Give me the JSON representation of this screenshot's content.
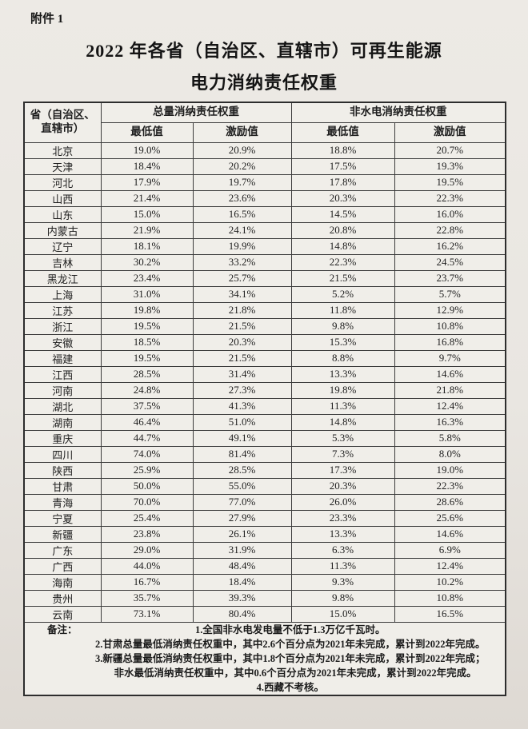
{
  "page": {
    "attachment_label": "附件 1",
    "title_line1": "2022 年各省（自治区、直辖市）可再生能源",
    "title_line2": "电力消纳责任权重"
  },
  "table": {
    "header": {
      "province": "省（自治区、直辖市）",
      "group_total": "总量消纳责任权重",
      "group_nonhydro": "非水电消纳责任权重",
      "min_label": "最低值",
      "incentive_label": "激励值"
    },
    "rows": [
      {
        "province": "北京",
        "total_min": "19.0%",
        "total_inc": "20.9%",
        "nonhydro_min": "18.8%",
        "nonhydro_inc": "20.7%"
      },
      {
        "province": "天津",
        "total_min": "18.4%",
        "total_inc": "20.2%",
        "nonhydro_min": "17.5%",
        "nonhydro_inc": "19.3%"
      },
      {
        "province": "河北",
        "total_min": "17.9%",
        "total_inc": "19.7%",
        "nonhydro_min": "17.8%",
        "nonhydro_inc": "19.5%"
      },
      {
        "province": "山西",
        "total_min": "21.4%",
        "total_inc": "23.6%",
        "nonhydro_min": "20.3%",
        "nonhydro_inc": "22.3%"
      },
      {
        "province": "山东",
        "total_min": "15.0%",
        "total_inc": "16.5%",
        "nonhydro_min": "14.5%",
        "nonhydro_inc": "16.0%"
      },
      {
        "province": "内蒙古",
        "total_min": "21.9%",
        "total_inc": "24.1%",
        "nonhydro_min": "20.8%",
        "nonhydro_inc": "22.8%"
      },
      {
        "province": "辽宁",
        "total_min": "18.1%",
        "total_inc": "19.9%",
        "nonhydro_min": "14.8%",
        "nonhydro_inc": "16.2%"
      },
      {
        "province": "吉林",
        "total_min": "30.2%",
        "total_inc": "33.2%",
        "nonhydro_min": "22.3%",
        "nonhydro_inc": "24.5%"
      },
      {
        "province": "黑龙江",
        "total_min": "23.4%",
        "total_inc": "25.7%",
        "nonhydro_min": "21.5%",
        "nonhydro_inc": "23.7%"
      },
      {
        "province": "上海",
        "total_min": "31.0%",
        "total_inc": "34.1%",
        "nonhydro_min": "5.2%",
        "nonhydro_inc": "5.7%"
      },
      {
        "province": "江苏",
        "total_min": "19.8%",
        "total_inc": "21.8%",
        "nonhydro_min": "11.8%",
        "nonhydro_inc": "12.9%"
      },
      {
        "province": "浙江",
        "total_min": "19.5%",
        "total_inc": "21.5%",
        "nonhydro_min": "9.8%",
        "nonhydro_inc": "10.8%"
      },
      {
        "province": "安徽",
        "total_min": "18.5%",
        "total_inc": "20.3%",
        "nonhydro_min": "15.3%",
        "nonhydro_inc": "16.8%"
      },
      {
        "province": "福建",
        "total_min": "19.5%",
        "total_inc": "21.5%",
        "nonhydro_min": "8.8%",
        "nonhydro_inc": "9.7%"
      },
      {
        "province": "江西",
        "total_min": "28.5%",
        "total_inc": "31.4%",
        "nonhydro_min": "13.3%",
        "nonhydro_inc": "14.6%"
      },
      {
        "province": "河南",
        "total_min": "24.8%",
        "total_inc": "27.3%",
        "nonhydro_min": "19.8%",
        "nonhydro_inc": "21.8%"
      },
      {
        "province": "湖北",
        "total_min": "37.5%",
        "total_inc": "41.3%",
        "nonhydro_min": "11.3%",
        "nonhydro_inc": "12.4%"
      },
      {
        "province": "湖南",
        "total_min": "46.4%",
        "total_inc": "51.0%",
        "nonhydro_min": "14.8%",
        "nonhydro_inc": "16.3%"
      },
      {
        "province": "重庆",
        "total_min": "44.7%",
        "total_inc": "49.1%",
        "nonhydro_min": "5.3%",
        "nonhydro_inc": "5.8%"
      },
      {
        "province": "四川",
        "total_min": "74.0%",
        "total_inc": "81.4%",
        "nonhydro_min": "7.3%",
        "nonhydro_inc": "8.0%"
      },
      {
        "province": "陕西",
        "total_min": "25.9%",
        "total_inc": "28.5%",
        "nonhydro_min": "17.3%",
        "nonhydro_inc": "19.0%"
      },
      {
        "province": "甘肃",
        "total_min": "50.0%",
        "total_inc": "55.0%",
        "nonhydro_min": "20.3%",
        "nonhydro_inc": "22.3%"
      },
      {
        "province": "青海",
        "total_min": "70.0%",
        "total_inc": "77.0%",
        "nonhydro_min": "26.0%",
        "nonhydro_inc": "28.6%"
      },
      {
        "province": "宁夏",
        "total_min": "25.4%",
        "total_inc": "27.9%",
        "nonhydro_min": "23.3%",
        "nonhydro_inc": "25.6%"
      },
      {
        "province": "新疆",
        "total_min": "23.8%",
        "total_inc": "26.1%",
        "nonhydro_min": "13.3%",
        "nonhydro_inc": "14.6%"
      },
      {
        "province": "广东",
        "total_min": "29.0%",
        "total_inc": "31.9%",
        "nonhydro_min": "6.3%",
        "nonhydro_inc": "6.9%"
      },
      {
        "province": "广西",
        "total_min": "44.0%",
        "total_inc": "48.4%",
        "nonhydro_min": "11.3%",
        "nonhydro_inc": "12.4%"
      },
      {
        "province": "海南",
        "total_min": "16.7%",
        "total_inc": "18.4%",
        "nonhydro_min": "9.3%",
        "nonhydro_inc": "10.2%"
      },
      {
        "province": "贵州",
        "total_min": "35.7%",
        "total_inc": "39.3%",
        "nonhydro_min": "9.8%",
        "nonhydro_inc": "10.8%"
      },
      {
        "province": "云南",
        "total_min": "73.1%",
        "total_inc": "80.4%",
        "nonhydro_min": "15.0%",
        "nonhydro_inc": "16.5%"
      }
    ],
    "notes_label": "备注：",
    "notes": [
      "1.全国非水电发电量不低于1.3万亿千瓦时。",
      "2.甘肃总量最低消纳责任权重中，其中2.6个百分点为2021年未完成，累计到2022年完成。",
      "3.新疆总量最低消纳责任权重中，其中1.8个百分点为2021年未完成，累计到2022年完成；",
      "　非水最低消纳责任权重中，其中0.6个百分点为2021年未完成，累计到2022年完成。",
      "4.西藏不考核。"
    ]
  }
}
